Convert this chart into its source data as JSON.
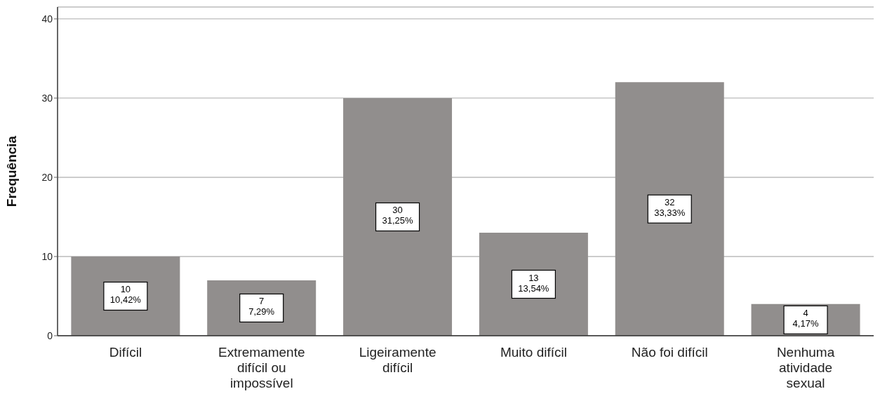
{
  "chart_data": {
    "type": "bar",
    "ylabel": "Frequência",
    "categories": [
      "Difícil",
      "Extremamente difícil ou impossível",
      "Ligeiramente difícil",
      "Muito difícil",
      "Não foi difícil",
      "Nenhuma atividade sexual"
    ],
    "values": [
      10,
      7,
      30,
      13,
      32,
      4
    ],
    "value_labels": [
      "10\n10,42%",
      "7\n7,29%",
      "30\n31,25%",
      "13\n13,54%",
      "32\n33,33%",
      "4\n4,17%"
    ],
    "color": "#918e8d",
    "ylim": [
      0,
      41.5
    ],
    "yticks": [
      0,
      10,
      20,
      30,
      40
    ],
    "grid": "y",
    "legend": false
  }
}
